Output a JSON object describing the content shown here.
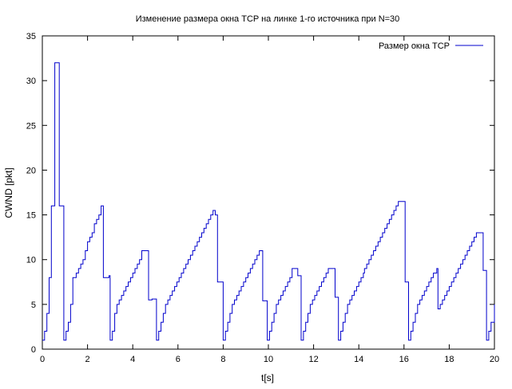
{
  "chart_data": {
    "type": "line",
    "title": "Изменение размера окна TCP на линке 1-го источника при N=30",
    "xlabel": "t[s]",
    "ylabel": "CWND [pkt]",
    "xlim": [
      0,
      20
    ],
    "ylim": [
      0,
      35
    ],
    "x_ticks": [
      "0",
      "2",
      "4",
      "6",
      "8",
      "10",
      "12",
      "14",
      "16",
      "18",
      "20"
    ],
    "y_ticks": [
      "0",
      "5",
      "10",
      "15",
      "20",
      "25",
      "30",
      "35"
    ],
    "grid": false,
    "legend_position": "top-right",
    "line_color": "#0000cc",
    "series": [
      {
        "name": "Размер окна TCP",
        "step_plot": true,
        "x": [
          0,
          0.1,
          0.2,
          0.3,
          0.4,
          0.55,
          0.62,
          0.75,
          0.88,
          0.95,
          1.05,
          1.15,
          1.25,
          1.35,
          1.4,
          1.5,
          1.6,
          1.7,
          1.8,
          1.9,
          2.0,
          2.1,
          2.2,
          2.3,
          2.4,
          2.5,
          2.6,
          2.7,
          2.8,
          2.95,
          3.0,
          3.1,
          3.2,
          3.3,
          3.4,
          3.5,
          3.6,
          3.7,
          3.8,
          3.9,
          4.0,
          4.1,
          4.2,
          4.3,
          4.4,
          4.7,
          4.75,
          4.85,
          4.95,
          5.05,
          5.15,
          5.25,
          5.35,
          5.45,
          5.55,
          5.65,
          5.75,
          5.85,
          5.95,
          6.05,
          6.15,
          6.25,
          6.35,
          6.45,
          6.55,
          6.65,
          6.75,
          6.85,
          6.95,
          7.05,
          7.15,
          7.25,
          7.35,
          7.45,
          7.55,
          7.65,
          7.75,
          7.95,
          8.0,
          8.1,
          8.2,
          8.3,
          8.4,
          8.5,
          8.6,
          8.7,
          8.8,
          8.9,
          9.0,
          9.1,
          9.2,
          9.3,
          9.4,
          9.5,
          9.6,
          9.75,
          9.85,
          9.95,
          10.05,
          10.15,
          10.25,
          10.35,
          10.45,
          10.55,
          10.65,
          10.75,
          10.85,
          10.95,
          11.05,
          11.3,
          11.35,
          11.45,
          11.55,
          11.65,
          11.75,
          11.85,
          11.95,
          12.05,
          12.15,
          12.25,
          12.35,
          12.45,
          12.55,
          12.65,
          12.95,
          13.0,
          13.1,
          13.2,
          13.3,
          13.4,
          13.5,
          13.6,
          13.7,
          13.8,
          13.9,
          14.0,
          14.1,
          14.2,
          14.25,
          14.35,
          14.45,
          14.55,
          14.65,
          14.75,
          14.85,
          14.95,
          15.05,
          15.15,
          15.25,
          15.35,
          15.45,
          15.55,
          15.65,
          15.75,
          16.05,
          16.1,
          16.2,
          16.3,
          16.4,
          16.5,
          16.6,
          16.7,
          16.8,
          16.9,
          17.0,
          17.1,
          17.2,
          17.3,
          17.45,
          17.5,
          17.6,
          17.7,
          17.8,
          17.9,
          18.0,
          18.1,
          18.2,
          18.3,
          18.4,
          18.5,
          18.6,
          18.7,
          18.8,
          18.9,
          19.0,
          19.1,
          19.2,
          19.5,
          19.55,
          19.65,
          19.75,
          19.85,
          20.0
        ],
        "y": [
          1,
          2,
          4,
          8,
          16,
          32,
          32,
          16,
          16,
          1,
          2,
          3,
          5,
          8,
          8,
          8.5,
          9,
          9.5,
          10,
          11,
          12,
          12.5,
          13,
          14,
          14.5,
          15,
          16,
          8,
          8,
          8.2,
          1,
          2,
          4,
          5,
          5.5,
          6,
          6.5,
          7,
          7.5,
          8,
          8.5,
          9,
          9.5,
          10,
          11,
          5.5,
          5.5,
          5.6,
          5.6,
          1,
          2,
          3,
          4,
          5,
          5.5,
          6,
          6.5,
          7,
          7.5,
          8,
          8.5,
          9,
          9.5,
          10,
          10.5,
          11,
          11.5,
          12,
          12.5,
          13,
          13.5,
          14,
          14.5,
          15,
          15.5,
          15,
          7.5,
          7.5,
          1,
          2,
          3,
          4,
          5,
          5.5,
          6,
          6.5,
          7,
          7.5,
          8,
          8.5,
          9,
          9.5,
          10,
          10.5,
          11,
          5.4,
          5.4,
          1,
          2,
          3,
          4,
          5,
          5.5,
          6,
          6.5,
          7,
          7.5,
          8,
          9,
          8.2,
          8.2,
          1,
          2,
          3,
          4,
          5,
          5.5,
          6,
          6.5,
          7,
          7.5,
          8,
          8.5,
          9,
          5.8,
          5.8,
          1,
          2,
          3,
          4,
          5,
          5.5,
          6,
          6.5,
          7,
          7.5,
          8,
          8.5,
          9,
          9.5,
          10,
          10.5,
          11,
          11.5,
          12,
          12.5,
          13,
          13.5,
          14,
          14.5,
          15,
          15.5,
          16,
          16.5,
          7.5,
          7.5,
          1,
          2,
          3,
          4,
          5,
          5.5,
          6,
          6.5,
          7,
          7.5,
          8,
          8.5,
          9,
          4.5,
          5,
          5.5,
          6,
          6.5,
          7,
          7.5,
          8,
          8.5,
          9,
          9.5,
          10,
          10.5,
          11,
          11.5,
          12,
          12.5,
          13,
          8.8,
          8.8,
          1,
          2,
          3,
          5
        ]
      }
    ]
  }
}
